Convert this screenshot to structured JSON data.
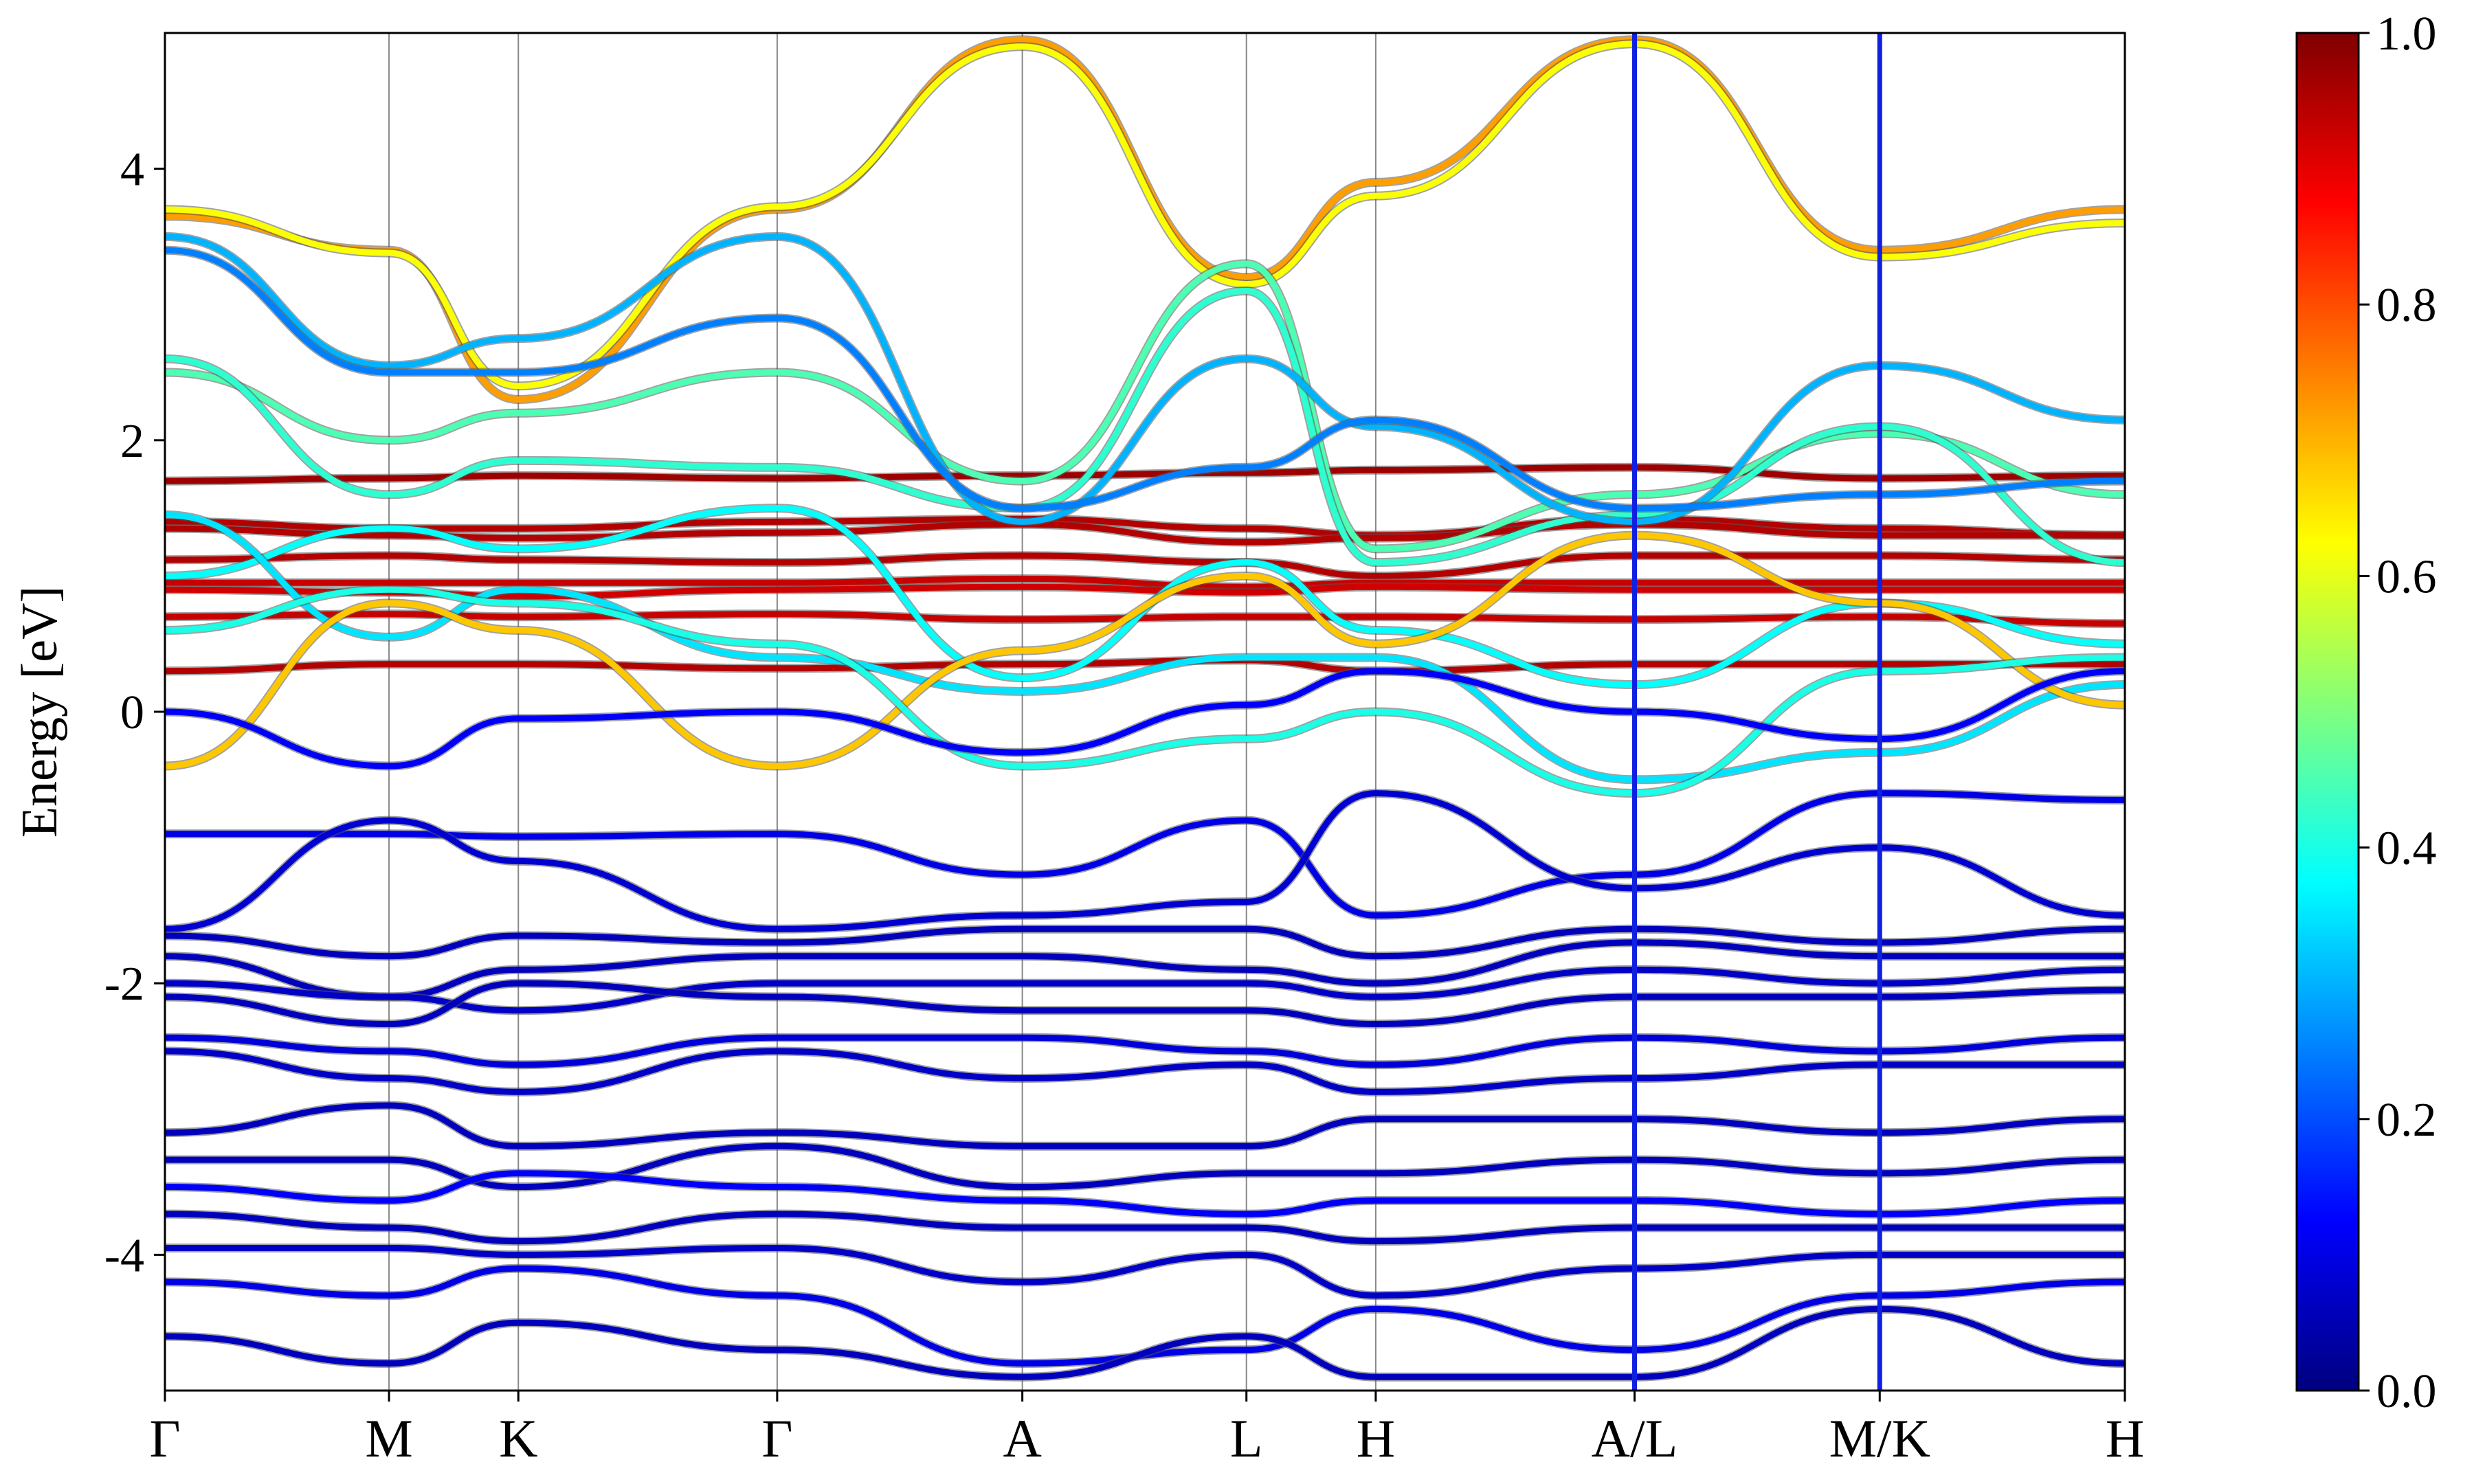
{
  "chart_data": {
    "type": "line",
    "title": "",
    "xlabel": "",
    "ylabel": "Energy [eV]",
    "ylim": [
      -5,
      5
    ],
    "yticks": [
      {
        "value": 4,
        "label": "4"
      },
      {
        "value": 2,
        "label": "2"
      },
      {
        "value": 0,
        "label": "0"
      },
      {
        "value": -2,
        "label": "-2"
      },
      {
        "value": -4,
        "label": "-4"
      }
    ],
    "kpoints": [
      {
        "label": "Γ",
        "pos": 0.0
      },
      {
        "label": "M",
        "pos": 1.0
      },
      {
        "label": "K",
        "pos": 1.577
      },
      {
        "label": "Γ",
        "pos": 2.732
      },
      {
        "label": "A",
        "pos": 3.826
      },
      {
        "label": "L",
        "pos": 4.826
      },
      {
        "label": "H",
        "pos": 5.403
      },
      {
        "label": "A/L",
        "pos": 6.558
      },
      {
        "label": "M/K",
        "pos": 7.652
      },
      {
        "label": "H",
        "pos": 8.746
      }
    ],
    "discontinuities": [
      6.558,
      7.652
    ],
    "colorbar": {
      "colormap": "jet",
      "range": [
        0,
        1
      ],
      "ticks": [
        {
          "value": 0.0,
          "label": "0.0"
        },
        {
          "value": 0.2,
          "label": "0.2"
        },
        {
          "value": 0.4,
          "label": "0.4"
        },
        {
          "value": 0.6,
          "label": "0.6"
        },
        {
          "value": 0.8,
          "label": "0.8"
        },
        {
          "value": 1.0,
          "label": "1.0"
        }
      ]
    },
    "series": [
      {
        "weight": 0.97,
        "values": [
          1.7,
          1.72,
          1.74,
          1.72,
          1.74,
          1.76,
          1.78,
          1.8,
          1.72,
          1.74
        ]
      },
      {
        "weight": 0.95,
        "values": [
          1.4,
          1.35,
          1.35,
          1.4,
          1.42,
          1.35,
          1.3,
          1.42,
          1.35,
          1.3
        ]
      },
      {
        "weight": 0.95,
        "values": [
          1.35,
          1.3,
          1.28,
          1.32,
          1.38,
          1.25,
          1.28,
          1.38,
          1.3,
          1.3
        ]
      },
      {
        "weight": 0.95,
        "values": [
          1.12,
          1.15,
          1.12,
          1.1,
          1.15,
          1.1,
          1.0,
          1.15,
          1.15,
          1.12
        ]
      },
      {
        "weight": 0.93,
        "values": [
          0.95,
          0.95,
          0.95,
          0.95,
          0.98,
          0.92,
          0.95,
          0.95,
          0.95,
          0.95
        ]
      },
      {
        "weight": 0.92,
        "values": [
          0.9,
          0.88,
          0.85,
          0.9,
          0.92,
          0.88,
          0.92,
          0.9,
          0.9,
          0.9
        ]
      },
      {
        "weight": 0.93,
        "values": [
          0.7,
          0.72,
          0.7,
          0.72,
          0.68,
          0.7,
          0.7,
          0.68,
          0.7,
          0.65
        ]
      },
      {
        "weight": 0.95,
        "values": [
          0.3,
          0.35,
          0.35,
          0.32,
          0.35,
          0.38,
          0.3,
          0.35,
          0.35,
          0.35
        ]
      },
      {
        "weight": 0.72,
        "values": [
          3.65,
          3.4,
          2.3,
          3.7,
          4.95,
          3.2,
          3.9,
          4.95,
          3.4,
          3.7
        ]
      },
      {
        "weight": 0.62,
        "values": [
          3.7,
          3.38,
          2.4,
          3.72,
          4.9,
          3.15,
          3.8,
          4.92,
          3.35,
          3.6
        ]
      },
      {
        "weight": 0.45,
        "values": [
          2.5,
          2.0,
          2.2,
          2.5,
          1.7,
          3.3,
          1.2,
          1.6,
          2.05,
          1.6
        ]
      },
      {
        "weight": 0.42,
        "values": [
          2.6,
          1.6,
          1.85,
          1.8,
          1.5,
          3.1,
          1.1,
          1.45,
          2.1,
          1.1
        ]
      },
      {
        "weight": 0.3,
        "values": [
          3.5,
          2.55,
          2.75,
          3.5,
          1.4,
          2.6,
          2.1,
          1.4,
          2.55,
          2.15
        ]
      },
      {
        "weight": 0.25,
        "values": [
          3.4,
          2.5,
          2.5,
          2.9,
          1.5,
          1.8,
          2.15,
          1.5,
          1.6,
          1.7
        ]
      },
      {
        "weight": 0.38,
        "values": [
          1.0,
          1.35,
          1.2,
          1.5,
          0.25,
          1.1,
          0.6,
          0.2,
          0.8,
          0.5
        ]
      },
      {
        "weight": 0.35,
        "values": [
          1.45,
          0.55,
          0.9,
          0.4,
          0.15,
          0.4,
          0.4,
          -0.5,
          -0.3,
          0.2
        ]
      },
      {
        "weight": 0.68,
        "values": [
          -0.4,
          0.8,
          0.6,
          -0.4,
          0.45,
          1.0,
          0.5,
          1.3,
          0.8,
          0.05
        ]
      },
      {
        "weight": 0.4,
        "values": [
          0.6,
          0.9,
          0.8,
          0.5,
          -0.4,
          -0.2,
          0.0,
          -0.6,
          0.3,
          0.4
        ]
      },
      {
        "weight": 0.12,
        "values": [
          0.0,
          -0.4,
          -0.05,
          0.0,
          -0.3,
          0.05,
          0.3,
          0.0,
          -0.2,
          0.3
        ]
      },
      {
        "weight": 0.1,
        "values": [
          -0.9,
          -0.9,
          -0.92,
          -0.9,
          -1.2,
          -0.8,
          -1.5,
          -1.2,
          -0.6,
          -0.65
        ]
      },
      {
        "weight": 0.08,
        "values": [
          -1.6,
          -0.8,
          -1.1,
          -1.6,
          -1.5,
          -1.4,
          -0.6,
          -1.3,
          -1.0,
          -1.5
        ]
      },
      {
        "weight": 0.06,
        "values": [
          -1.65,
          -1.8,
          -1.65,
          -1.7,
          -1.6,
          -1.6,
          -1.8,
          -1.6,
          -1.7,
          -1.6
        ]
      },
      {
        "weight": 0.06,
        "values": [
          -1.8,
          -2.1,
          -1.9,
          -1.8,
          -1.8,
          -1.9,
          -2.0,
          -1.7,
          -1.8,
          -1.8
        ]
      },
      {
        "weight": 0.07,
        "values": [
          -2.0,
          -2.1,
          -2.2,
          -2.0,
          -2.0,
          -2.0,
          -2.1,
          -1.9,
          -2.0,
          -1.9
        ]
      },
      {
        "weight": 0.06,
        "values": [
          -2.1,
          -2.3,
          -2.0,
          -2.1,
          -2.2,
          -2.2,
          -2.3,
          -2.1,
          -2.1,
          -2.05
        ]
      },
      {
        "weight": 0.09,
        "values": [
          -2.4,
          -2.5,
          -2.6,
          -2.4,
          -2.4,
          -2.5,
          -2.6,
          -2.4,
          -2.5,
          -2.4
        ]
      },
      {
        "weight": 0.07,
        "values": [
          -2.5,
          -2.7,
          -2.8,
          -2.5,
          -2.7,
          -2.6,
          -2.8,
          -2.7,
          -2.6,
          -2.6
        ]
      },
      {
        "weight": 0.06,
        "values": [
          -3.1,
          -2.9,
          -3.2,
          -3.1,
          -3.2,
          -3.2,
          -3.0,
          -3.0,
          -3.1,
          -3.0
        ]
      },
      {
        "weight": 0.06,
        "values": [
          -3.3,
          -3.3,
          -3.5,
          -3.2,
          -3.5,
          -3.4,
          -3.4,
          -3.3,
          -3.4,
          -3.3
        ]
      },
      {
        "weight": 0.12,
        "values": [
          -3.5,
          -3.6,
          -3.4,
          -3.5,
          -3.6,
          -3.7,
          -3.6,
          -3.6,
          -3.7,
          -3.6
        ]
      },
      {
        "weight": 0.06,
        "values": [
          -3.7,
          -3.8,
          -3.9,
          -3.7,
          -3.8,
          -3.8,
          -3.9,
          -3.8,
          -3.8,
          -3.8
        ]
      },
      {
        "weight": 0.07,
        "values": [
          -3.95,
          -3.95,
          -4.0,
          -3.95,
          -4.2,
          -4.0,
          -4.3,
          -4.1,
          -4.0,
          -4.0
        ]
      },
      {
        "weight": 0.1,
        "values": [
          -4.2,
          -4.3,
          -4.1,
          -4.3,
          -4.8,
          -4.7,
          -4.4,
          -4.7,
          -4.3,
          -4.2
        ]
      },
      {
        "weight": 0.06,
        "values": [
          -4.6,
          -4.8,
          -4.5,
          -4.7,
          -4.9,
          -4.6,
          -4.9,
          -4.9,
          -4.4,
          -4.8
        ]
      }
    ]
  }
}
